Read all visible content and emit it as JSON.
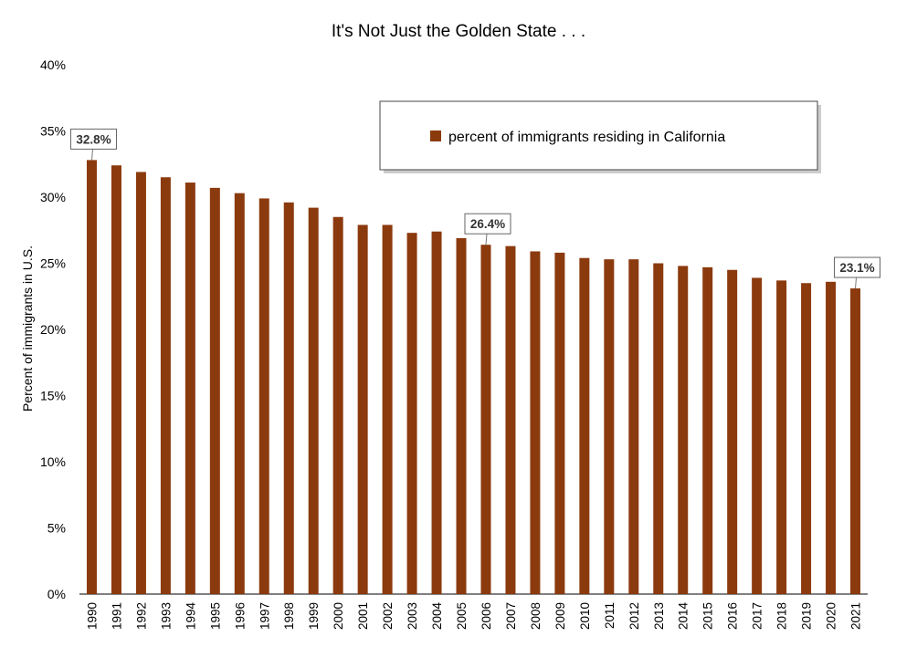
{
  "chart_data": {
    "type": "bar",
    "title": "It's Not Just the Golden State . . .",
    "ylabel": "Percent of immigrants in U.S.",
    "xlabel": "",
    "ylim": [
      0,
      40
    ],
    "yticks": [
      "0%",
      "5%",
      "10%",
      "15%",
      "20%",
      "25%",
      "30%",
      "35%",
      "40%"
    ],
    "ytick_values": [
      0,
      5,
      10,
      15,
      20,
      25,
      30,
      35,
      40
    ],
    "legend": {
      "label": "percent of immigrants residing in California",
      "position": "top-right"
    },
    "series": [
      {
        "name": "percent of immigrants residing in California",
        "color": "#8B3A0E",
        "values": [
          32.8,
          32.4,
          31.9,
          31.5,
          31.1,
          30.7,
          30.3,
          29.9,
          29.6,
          29.2,
          28.5,
          27.9,
          27.9,
          27.3,
          27.4,
          26.9,
          26.4,
          26.3,
          25.9,
          25.8,
          25.4,
          25.3,
          25.3,
          25.0,
          24.8,
          24.7,
          24.5,
          23.9,
          23.7,
          23.5,
          23.6,
          23.1
        ]
      }
    ],
    "categories": [
      "1990",
      "1991",
      "1992",
      "1993",
      "1994",
      "1995",
      "1996",
      "1997",
      "1998",
      "1999",
      "2000",
      "2001",
      "2002",
      "2003",
      "2004",
      "2005",
      "2006",
      "2007",
      "2008",
      "2009",
      "2010",
      "2011",
      "2012",
      "2013",
      "2014",
      "2015",
      "2016",
      "2017",
      "2018",
      "2019",
      "2020",
      "2021"
    ],
    "callouts": [
      {
        "category": "1990",
        "label": "32.8%"
      },
      {
        "category": "2006",
        "label": "26.4%"
      },
      {
        "category": "2021",
        "label": "23.1%"
      }
    ],
    "grid": false
  }
}
